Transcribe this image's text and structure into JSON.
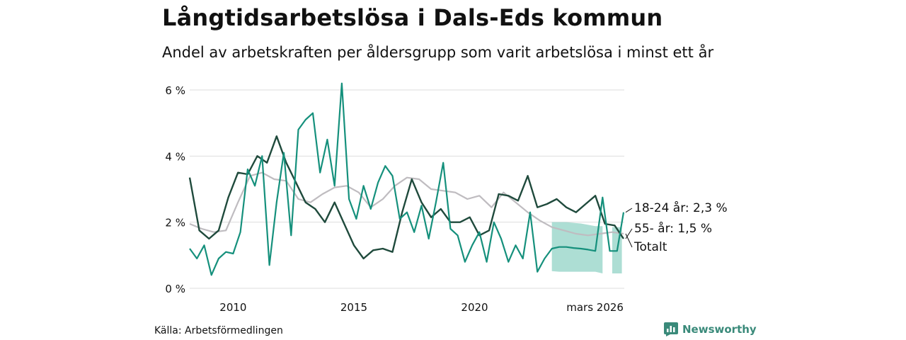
{
  "header": {
    "title": "Långtidsarbetslösa i Dals-Eds kommun",
    "subtitle": "Andel av arbetskraften per åldersgrupp som varit arbetslösa i minst ett år"
  },
  "footer": {
    "source": "Källa: Arbetsförmedlingen",
    "brand": "Newsworthy"
  },
  "colors": {
    "youth": "#15907c",
    "senior": "#1f4a3c",
    "total": "#bfbcc0",
    "band": "#9fd8cc",
    "grid": "#dddddd"
  },
  "chart_data": {
    "type": "line",
    "title": "Långtidsarbetslösa i Dals-Eds kommun",
    "subtitle": "Andel av arbetskraften per åldersgrupp som varit arbetslösa i minst ett år",
    "xlabel": "",
    "ylabel": "",
    "xlim": [
      2008.2,
      2026.2
    ],
    "ylim": [
      0,
      6
    ],
    "yticks": [
      0,
      2,
      4,
      6
    ],
    "ytick_labels": [
      "0 %",
      "2 %",
      "4 %",
      "6 %"
    ],
    "xticks": [
      2010,
      2015,
      2020,
      2026.17
    ],
    "xtick_labels": [
      "2010",
      "2015",
      "2020",
      "mars 2026"
    ],
    "grid": true,
    "series": [
      {
        "name": "Totalt",
        "label": "Totalt",
        "x": [
          2008.2,
          2008.7,
          2009.2,
          2009.7,
          2010.2,
          2010.7,
          2011.2,
          2011.7,
          2012.2,
          2012.7,
          2013.2,
          2013.7,
          2014.2,
          2014.7,
          2015.2,
          2015.7,
          2016.2,
          2016.7,
          2017.2,
          2017.7,
          2018.2,
          2018.7,
          2019.2,
          2019.7,
          2020.2,
          2020.7,
          2021.2,
          2021.7,
          2022.2,
          2022.7,
          2023.2,
          2023.7,
          2024.2,
          2024.7,
          2025.2,
          2025.7,
          2026.17
        ],
        "values": [
          1.95,
          1.8,
          1.7,
          1.75,
          2.6,
          3.4,
          3.5,
          3.3,
          3.25,
          2.7,
          2.6,
          2.85,
          3.05,
          3.1,
          2.9,
          2.45,
          2.7,
          3.1,
          3.35,
          3.3,
          3.0,
          2.95,
          2.9,
          2.7,
          2.8,
          2.45,
          2.9,
          2.6,
          2.3,
          2.05,
          1.85,
          1.75,
          1.65,
          1.6,
          1.65,
          1.7,
          1.65
        ]
      },
      {
        "name": "55- år",
        "label": "55- år: 1,5 %",
        "x": [
          2008.2,
          2008.6,
          2009.0,
          2009.4,
          2009.8,
          2010.2,
          2010.6,
          2011.0,
          2011.4,
          2011.8,
          2012.2,
          2012.6,
          2013.0,
          2013.4,
          2013.8,
          2014.2,
          2014.6,
          2015.0,
          2015.4,
          2015.8,
          2016.2,
          2016.6,
          2017.0,
          2017.4,
          2017.8,
          2018.2,
          2018.6,
          2019.0,
          2019.4,
          2019.8,
          2020.2,
          2020.6,
          2021.0,
          2021.4,
          2021.8,
          2022.2,
          2022.6,
          2023.0,
          2023.4,
          2023.8,
          2024.2,
          2024.6,
          2025.0,
          2025.4,
          2025.8,
          2026.17
        ],
        "values": [
          3.35,
          1.75,
          1.5,
          1.75,
          2.75,
          3.5,
          3.45,
          4.0,
          3.8,
          4.6,
          3.8,
          3.2,
          2.6,
          2.4,
          2.0,
          2.6,
          1.95,
          1.3,
          0.9,
          1.15,
          1.2,
          1.1,
          2.3,
          3.3,
          2.6,
          2.15,
          2.4,
          2.0,
          2.0,
          2.15,
          1.6,
          1.75,
          2.85,
          2.8,
          2.65,
          3.4,
          2.45,
          2.55,
          2.7,
          2.45,
          2.3,
          2.55,
          2.8,
          1.95,
          1.9,
          1.5
        ]
      },
      {
        "name": "18-24 år",
        "label": "18-24 år: 2,3 %",
        "x": [
          2008.2,
          2008.5,
          2008.8,
          2009.1,
          2009.4,
          2009.7,
          2010.0,
          2010.3,
          2010.6,
          2010.9,
          2011.2,
          2011.5,
          2011.8,
          2012.1,
          2012.4,
          2012.7,
          2013.0,
          2013.3,
          2013.6,
          2013.9,
          2014.2,
          2014.5,
          2014.8,
          2015.1,
          2015.4,
          2015.7,
          2016.0,
          2016.3,
          2016.6,
          2016.9,
          2017.2,
          2017.5,
          2017.8,
          2018.1,
          2018.4,
          2018.7,
          2019.0,
          2019.3,
          2019.6,
          2019.9,
          2020.2,
          2020.5,
          2020.8,
          2021.1,
          2021.4,
          2021.7,
          2022.0,
          2022.3,
          2022.6,
          2022.9,
          2023.2,
          2023.5,
          2023.8,
          2024.1,
          2024.4,
          2024.7,
          2025.0,
          2025.3,
          2025.6,
          2025.9,
          2026.17
        ],
        "values": [
          1.2,
          0.9,
          1.3,
          0.4,
          0.9,
          1.1,
          1.05,
          1.7,
          3.6,
          3.1,
          4.0,
          0.7,
          2.6,
          4.1,
          1.6,
          4.8,
          5.1,
          5.3,
          3.5,
          4.5,
          3.1,
          6.2,
          2.7,
          2.1,
          3.1,
          2.4,
          3.2,
          3.7,
          3.4,
          2.1,
          2.3,
          1.7,
          2.5,
          1.5,
          2.6,
          3.8,
          1.8,
          1.6,
          0.8,
          1.3,
          1.7,
          0.8,
          2.0,
          1.5,
          0.8,
          1.3,
          0.9,
          2.3,
          0.5,
          0.9,
          1.2,
          1.25,
          1.25,
          1.22,
          1.2,
          1.17,
          1.13,
          2.75,
          1.13,
          1.13,
          2.3
        ]
      }
    ],
    "uncertainty_band": {
      "series": "18-24 år",
      "x": [
        2023.2,
        2023.5,
        2023.8,
        2024.1,
        2024.4,
        2024.7,
        2025.0,
        2025.3
      ],
      "lower": [
        0.52,
        0.5,
        0.5,
        0.5,
        0.5,
        0.5,
        0.5,
        0.45
      ],
      "upper": [
        2.0,
        2.0,
        2.0,
        1.98,
        1.96,
        1.92,
        1.88,
        1.88
      ]
    },
    "uncertainty_band_2": {
      "series": "18-24 år",
      "x": [
        2025.7,
        2025.9,
        2026.1
      ],
      "lower": [
        0.45,
        0.45,
        0.45
      ],
      "upper": [
        1.85,
        1.85,
        1.85
      ]
    }
  }
}
